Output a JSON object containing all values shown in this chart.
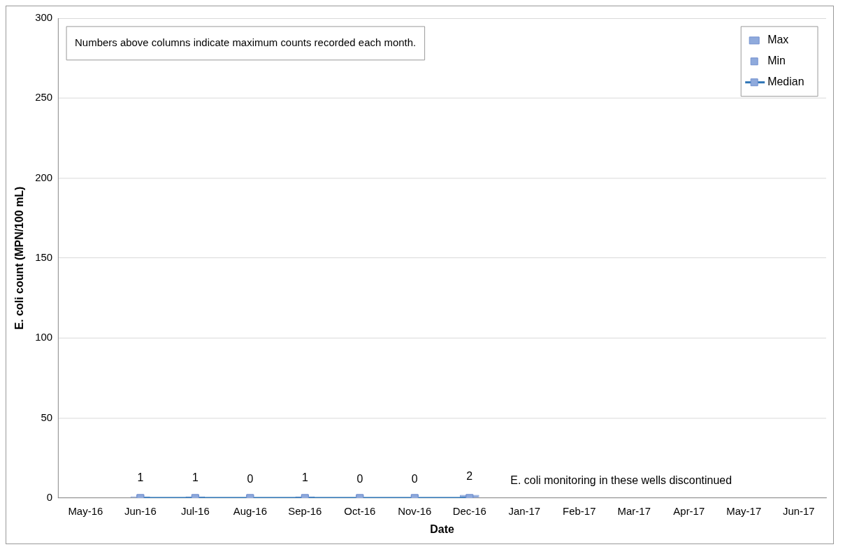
{
  "chart_data": {
    "type": "bar",
    "xlabel": "Date",
    "ylabel": "E. coli count (MPN/100 mL)",
    "categories": [
      "May-16",
      "Jun-16",
      "Jul-16",
      "Aug-16",
      "Sep-16",
      "Oct-16",
      "Nov-16",
      "Dec-16",
      "Jan-17",
      "Feb-17",
      "Mar-17",
      "Apr-17",
      "May-17",
      "Jun-17"
    ],
    "series": [
      {
        "name": "Max",
        "color": "#8faadc",
        "values": [
          null,
          1,
          1,
          0,
          1,
          0,
          0,
          2,
          null,
          null,
          null,
          null,
          null,
          null
        ],
        "value_labels": [
          null,
          "1",
          "1",
          "0",
          "1",
          "0",
          "0",
          "2",
          null,
          null,
          null,
          null,
          null,
          null
        ]
      },
      {
        "name": "Min",
        "type": "scatter",
        "color": "#8faadc",
        "marker": "square",
        "values": [
          null,
          0,
          0,
          0,
          0,
          0,
          0,
          0,
          null,
          null,
          null,
          null,
          null,
          null
        ]
      },
      {
        "name": "Median",
        "type": "line",
        "color": "#2e75b6",
        "marker": "square",
        "values": [
          null,
          0,
          0,
          0,
          0,
          0,
          0,
          0,
          null,
          null,
          null,
          null,
          null,
          null
        ]
      }
    ],
    "ylim": [
      0,
      300
    ],
    "yticks": [
      0,
      50,
      100,
      150,
      200,
      250,
      300
    ],
    "grid": "y",
    "legend": "top right",
    "annotations": [
      "Numbers above columns indicate maximum counts recorded each month.",
      "E. coli monitoring in these wells discontinued"
    ]
  }
}
